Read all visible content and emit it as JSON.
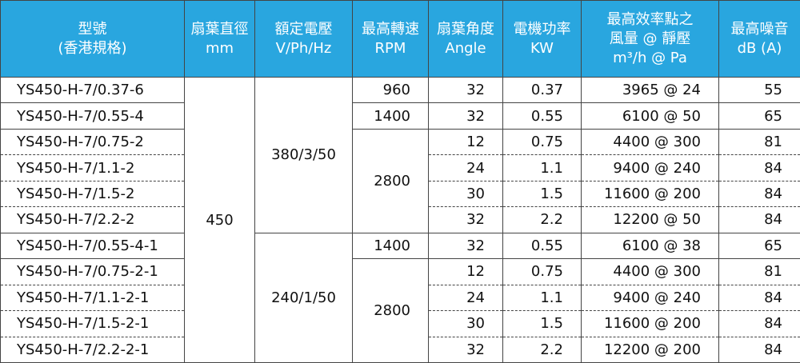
{
  "table": {
    "header": [
      [
        "型號",
        "(香港規格)"
      ],
      [
        "扇葉直徑",
        "mm"
      ],
      [
        "額定電壓",
        "V/Ph/Hz"
      ],
      [
        "最高轉速",
        "RPM"
      ],
      [
        "扇葉角度",
        "Angle"
      ],
      [
        "電機功率",
        "KW"
      ],
      [
        "最高效率點之",
        "風量 @ 靜壓",
        "m³/h @ Pa"
      ],
      [
        "最高噪音",
        "dB (A)"
      ]
    ],
    "diameter": 450,
    "voltage": [
      "380/3/50",
      "240/1/50"
    ],
    "rpm": [
      960,
      1400,
      2800,
      1400,
      2800
    ],
    "rows": [
      [
        "YS450-H-7/0.37-6",
        32,
        0.37,
        "3965 @ 24",
        55
      ],
      [
        "YS450-H-7/0.55-4",
        32,
        0.55,
        "6100 @ 50",
        65
      ],
      [
        "YS450-H-7/0.75-2",
        12,
        0.75,
        "4400 @ 300",
        81
      ],
      [
        "YS450-H-7/1.1-2",
        24,
        1.1,
        "9400 @ 240",
        84
      ],
      [
        "YS450-H-7/1.5-2",
        30,
        1.5,
        "11600 @ 200",
        84
      ],
      [
        "YS450-H-7/2.2-2",
        32,
        2.2,
        "12200 @ 50",
        84
      ],
      [
        "YS450-H-7/0.55-4-1",
        32,
        0.55,
        "6100 @ 38",
        65
      ],
      [
        "YS450-H-7/0.75-2-1",
        12,
        0.75,
        "4400 @ 300",
        81
      ],
      [
        "YS450-H-7/1.1-2-1",
        24,
        1.1,
        "9400 @ 240",
        84
      ],
      [
        "YS450-H-7/1.5-2-1",
        30,
        1.5,
        "11600 @ 200",
        84
      ],
      [
        "YS450-H-7/2.2-2-1",
        32,
        2.2,
        "12200 @ 200",
        84
      ]
    ]
  }
}
